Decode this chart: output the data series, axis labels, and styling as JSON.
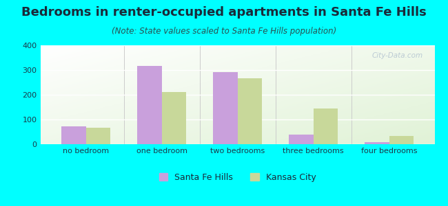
{
  "title": "Bedrooms in renter-occupied apartments in Santa Fe Hills",
  "subtitle": "(Note: State values scaled to Santa Fe Hills population)",
  "categories": [
    "no bedroom",
    "one bedroom",
    "two bedrooms",
    "three bedrooms",
    "four bedrooms"
  ],
  "santa_fe_hills": [
    72,
    318,
    293,
    40,
    8
  ],
  "kansas_city": [
    68,
    212,
    267,
    145,
    32
  ],
  "color_sfh": "#c9a0dc",
  "color_kc": "#c8d89a",
  "ylim": [
    0,
    400
  ],
  "yticks": [
    0,
    100,
    200,
    300,
    400
  ],
  "background_color": "#00ffff",
  "watermark": "City-Data.com",
  "legend_sfh": "Santa Fe Hills",
  "legend_kc": "Kansas City",
  "title_fontsize": 13,
  "subtitle_fontsize": 8.5,
  "tick_fontsize": 8,
  "bar_width": 0.32,
  "title_color": "#1a2a3a",
  "subtitle_color": "#2a5050",
  "tick_color": "#1a3a4a"
}
